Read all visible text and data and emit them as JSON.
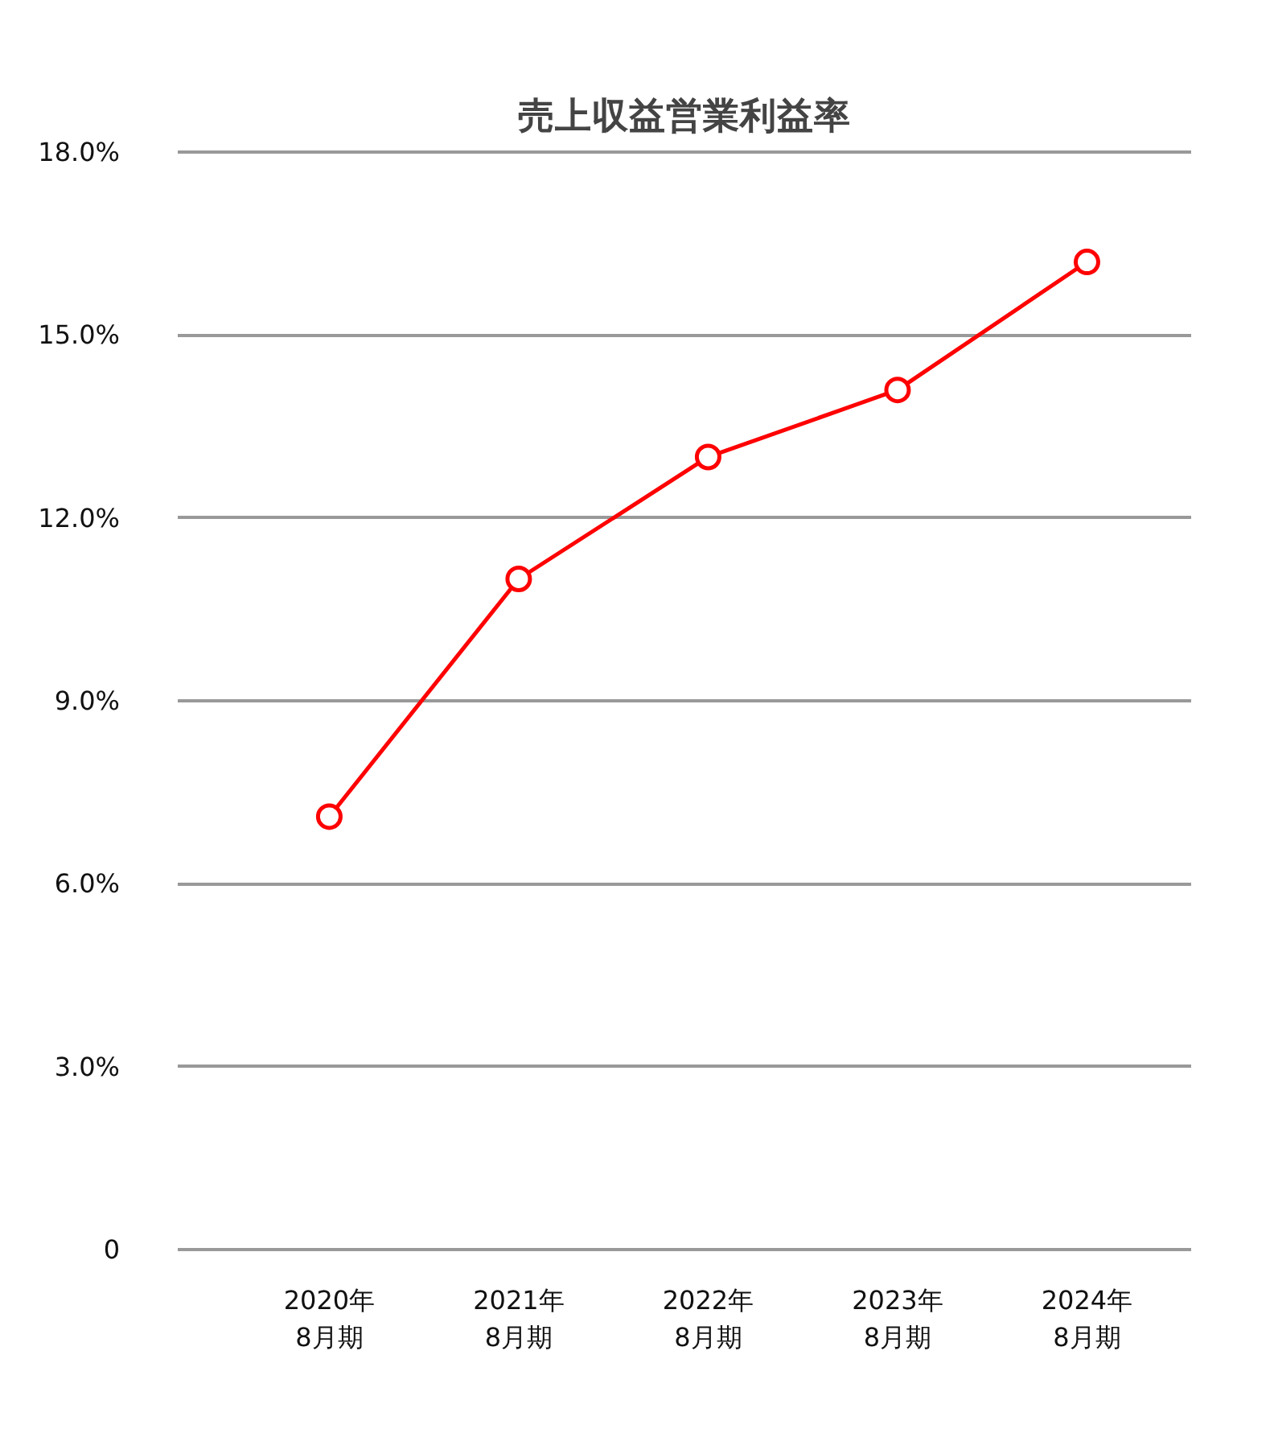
{
  "chart_data": {
    "type": "line",
    "title": "売上収益営業利益率",
    "categories": [
      "2020年\n8月期",
      "2021年\n8月期",
      "2022年\n8月期",
      "2023年\n8月期",
      "2024年\n8月期"
    ],
    "series": [
      {
        "color": "#ff0000",
        "values": [
          7.1,
          11.0,
          13.0,
          14.1,
          16.2
        ]
      }
    ],
    "ylim": [
      0,
      18
    ],
    "yticks": [
      {
        "value": 0,
        "label": "0"
      },
      {
        "value": 3,
        "label": "3.0%"
      },
      {
        "value": 6,
        "label": "6.0%"
      },
      {
        "value": 9,
        "label": "9.0%"
      },
      {
        "value": 12,
        "label": "12.0%"
      },
      {
        "value": 15,
        "label": "15.0%"
      },
      {
        "value": 18,
        "label": "18.0%"
      }
    ],
    "grid": "y",
    "marker": "circle",
    "line_style": "solid"
  }
}
